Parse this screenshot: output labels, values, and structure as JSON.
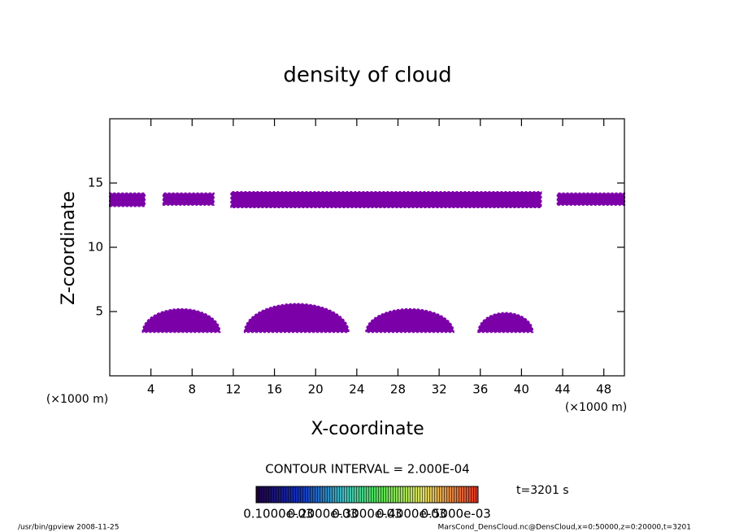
{
  "chart_data": {
    "type": "contour",
    "title": "density of cloud",
    "x_label": "X-coordinate",
    "y_label": "Z-coordinate",
    "x_unit": "(×1000 m)",
    "y_unit": "(×1000 m)",
    "xlim": [
      0,
      50
    ],
    "ylim": [
      0,
      20
    ],
    "xticks": [
      4,
      8,
      12,
      16,
      20,
      24,
      28,
      32,
      36,
      40,
      44,
      48
    ],
    "yticks": [
      5,
      10,
      15
    ],
    "color": "#7b00a8",
    "regions": [
      {
        "shape": "band",
        "x": [
          0,
          3.4
        ],
        "z": [
          13.2,
          14.2
        ]
      },
      {
        "shape": "band",
        "x": [
          5.2,
          10.1
        ],
        "z": [
          13.3,
          14.2
        ]
      },
      {
        "shape": "band",
        "x": [
          11.8,
          41.9
        ],
        "z": [
          13.1,
          14.3
        ]
      },
      {
        "shape": "band",
        "x": [
          43.5,
          50
        ],
        "z": [
          13.3,
          14.2
        ]
      },
      {
        "shape": "dome",
        "x": [
          3.2,
          10.7
        ],
        "z": [
          3.4,
          5.2
        ]
      },
      {
        "shape": "dome",
        "x": [
          13.1,
          23.2
        ],
        "z": [
          3.4,
          5.6
        ]
      },
      {
        "shape": "dome",
        "x": [
          24.9,
          33.4
        ],
        "z": [
          3.4,
          5.2
        ]
      },
      {
        "shape": "dome",
        "x": [
          35.8,
          41.1
        ],
        "z": [
          3.4,
          4.9
        ]
      }
    ],
    "contour_interval": "CONTOUR INTERVAL = 2.000E-04",
    "colorbar_ticks": [
      {
        "value": 0.0001,
        "label": "0.1000e-03"
      },
      {
        "value": 0.0002,
        "label": "0.2000e-03"
      },
      {
        "value": 0.0003,
        "label": "0.3000e-03"
      },
      {
        "value": 0.0004,
        "label": "0.4000e-03"
      },
      {
        "value": 0.0005,
        "label": "0.5000e-03"
      }
    ],
    "time_label": "t=3201 s",
    "footer_left": "/usr/bin/gpview  2008-11-25",
    "footer_right": "MarsCond_DensCloud.nc@DensCloud,x=0:50000,z=0:20000,t=3201"
  }
}
